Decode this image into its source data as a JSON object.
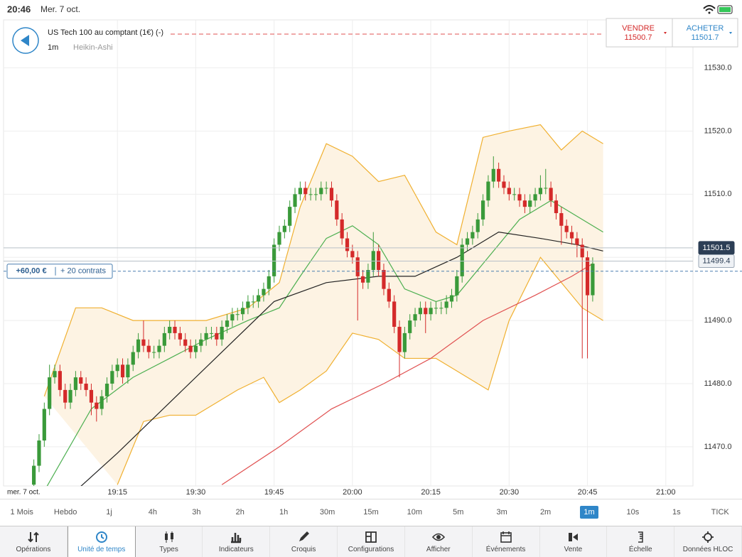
{
  "status_bar": {
    "time": "20:46",
    "date": "Mer. 7 oct."
  },
  "header": {
    "title": "US Tech 100 au comptant (1€) (-)",
    "interval": "1m",
    "chart_style": "Heikin-Ashi",
    "sell_label": "VENDRE",
    "sell_price": "11500.7",
    "buy_label": "ACHETER",
    "buy_price": "11501.7"
  },
  "chart_data": {
    "type": "candlestick",
    "x_date_label": "mer. 7 oct.",
    "up_color": "#3a9a3a",
    "down_color": "#d42a2a",
    "grid": true,
    "xlim": [
      1133.2,
      1265.2
    ],
    "xticks": [
      {
        "value": 1155,
        "label": "19:15"
      },
      {
        "value": 1170,
        "label": "19:30"
      },
      {
        "value": 1185,
        "label": "19:45"
      },
      {
        "value": 1200,
        "label": "20:00"
      },
      {
        "value": 1215,
        "label": "20:15"
      },
      {
        "value": 1230,
        "label": "20:30"
      },
      {
        "value": 1245,
        "label": "20:45"
      },
      {
        "value": 1260,
        "label": "21:00"
      }
    ],
    "ylim": [
      11463.8,
      11537.6
    ],
    "yticks": [
      {
        "value": 11470,
        "label": "11470.0"
      },
      {
        "value": 11480,
        "label": "11480.0"
      },
      {
        "value": 11490,
        "label": "11490.0"
      },
      {
        "value": 11500,
        "label": "11500.0"
      },
      {
        "value": 11510,
        "label": "11510.0"
      },
      {
        "value": 11520,
        "label": "11520.0"
      },
      {
        "value": 11530,
        "label": "11530.0"
      }
    ],
    "hidden_ytick_labels": [
      3
    ],
    "x": [
      1139,
      1140,
      1141,
      1142,
      1143,
      1144,
      1145,
      1146,
      1147,
      1148,
      1149,
      1150,
      1151,
      1152,
      1153,
      1154,
      1155,
      1156,
      1157,
      1158,
      1159,
      1160,
      1161,
      1162,
      1163,
      1164,
      1165,
      1166,
      1167,
      1168,
      1169,
      1170,
      1171,
      1172,
      1173,
      1174,
      1175,
      1176,
      1177,
      1178,
      1179,
      1180,
      1181,
      1182,
      1183,
      1184,
      1185,
      1186,
      1187,
      1188,
      1189,
      1190,
      1191,
      1192,
      1193,
      1194,
      1195,
      1196,
      1197,
      1198,
      1199,
      1200,
      1201,
      1202,
      1203,
      1204,
      1205,
      1206,
      1207,
      1208,
      1209,
      1210,
      1211,
      1212,
      1213,
      1214,
      1215,
      1216,
      1217,
      1218,
      1219,
      1220,
      1221,
      1222,
      1223,
      1224,
      1225,
      1226,
      1227,
      1228,
      1229,
      1230,
      1231,
      1232,
      1233,
      1234,
      1235,
      1236,
      1237,
      1238,
      1239,
      1240,
      1241,
      1242,
      1243,
      1244,
      1245,
      1246
    ],
    "candles": [
      [
        11464,
        11468,
        11463,
        11467
      ],
      [
        11467,
        11472,
        11466,
        11471
      ],
      [
        11471,
        11477,
        11470,
        11476
      ],
      [
        11476,
        11483,
        11475,
        11481
      ],
      [
        11481,
        11483,
        11480,
        11482
      ],
      [
        11482,
        11483,
        11478,
        11479
      ],
      [
        11479,
        11480,
        11476,
        11477
      ],
      [
        11477,
        11480,
        11476,
        11479
      ],
      [
        11479,
        11482,
        11478,
        11481
      ],
      [
        11481,
        11482,
        11479,
        11480
      ],
      [
        11480,
        11481,
        11478,
        11479
      ],
      [
        11479,
        11480,
        11475,
        11477
      ],
      [
        11477,
        11478,
        11474,
        11476
      ],
      [
        11476,
        11479,
        11475,
        11478
      ],
      [
        11478,
        11481,
        11477,
        11480
      ],
      [
        11480,
        11483,
        11479,
        11482
      ],
      [
        11482,
        11484,
        11481,
        11483
      ],
      [
        11483,
        11484,
        11480,
        11481
      ],
      [
        11481,
        11484,
        11480,
        11483
      ],
      [
        11483,
        11486,
        11482,
        11485
      ],
      [
        11485,
        11488,
        11484,
        11487
      ],
      [
        11487,
        11490,
        11485,
        11486
      ],
      [
        11486,
        11487,
        11484,
        11485
      ],
      [
        11485,
        11486,
        11484,
        11485
      ],
      [
        11485,
        11487,
        11484,
        11486
      ],
      [
        11486,
        11489,
        11485,
        11488
      ],
      [
        11488,
        11490,
        11487,
        11489
      ],
      [
        11489,
        11490,
        11487,
        11488
      ],
      [
        11488,
        11489,
        11486,
        11487
      ],
      [
        11487,
        11488,
        11485,
        11486
      ],
      [
        11486,
        11487,
        11484,
        11485
      ],
      [
        11485,
        11487,
        11484,
        11486
      ],
      [
        11486,
        11488,
        11485,
        11487
      ],
      [
        11487,
        11489,
        11486,
        11488
      ],
      [
        11488,
        11489,
        11487,
        11488
      ],
      [
        11488,
        11489,
        11486,
        11487
      ],
      [
        11487,
        11490,
        11486,
        11489
      ],
      [
        11489,
        11491,
        11488,
        11490
      ],
      [
        11490,
        11492,
        11489,
        11491
      ],
      [
        11491,
        11492,
        11490,
        11491
      ],
      [
        11491,
        11493,
        11490,
        11492
      ],
      [
        11492,
        11494,
        11491,
        11493
      ],
      [
        11493,
        11494,
        11492,
        11493
      ],
      [
        11493,
        11495,
        11492,
        11494
      ],
      [
        11494,
        11496,
        11493,
        11495
      ],
      [
        11495,
        11498,
        11494,
        11497
      ],
      [
        11497,
        11503,
        11496,
        11502
      ],
      [
        11502,
        11505,
        11501,
        11504
      ],
      [
        11504,
        11506,
        11503,
        11505
      ],
      [
        11505,
        11509,
        11504,
        11508
      ],
      [
        11508,
        11511,
        11507,
        11510
      ],
      [
        11510,
        11512,
        11509,
        11511
      ],
      [
        11511,
        11512,
        11509,
        11510
      ],
      [
        11510,
        11511,
        11509,
        11510
      ],
      [
        11510,
        11511,
        11509,
        11510
      ],
      [
        11510,
        11512,
        11509,
        11511
      ],
      [
        11511,
        11512,
        11510,
        11511
      ],
      [
        11511,
        11512,
        11508,
        11509
      ],
      [
        11509,
        11510,
        11505,
        11506
      ],
      [
        11506,
        11507,
        11502,
        11503
      ],
      [
        11503,
        11504,
        11500,
        11501
      ],
      [
        11501,
        11502,
        11499,
        11500
      ],
      [
        11500,
        11501,
        11490,
        11497
      ],
      [
        11497,
        11498,
        11495,
        11496
      ],
      [
        11496,
        11499,
        11495,
        11498
      ],
      [
        11498,
        11504,
        11497,
        11501
      ],
      [
        11501,
        11502,
        11497,
        11498
      ],
      [
        11498,
        11499,
        11494,
        11495
      ],
      [
        11495,
        11496,
        11492,
        11493
      ],
      [
        11493,
        11494,
        11488,
        11489
      ],
      [
        11489,
        11490,
        11481,
        11485
      ],
      [
        11485,
        11489,
        11484,
        11488
      ],
      [
        11488,
        11491,
        11487,
        11490
      ],
      [
        11490,
        11492,
        11489,
        11491
      ],
      [
        11491,
        11493,
        11490,
        11492
      ],
      [
        11492,
        11493,
        11488,
        11491
      ],
      [
        11491,
        11493,
        11490,
        11492
      ],
      [
        11492,
        11493,
        11491,
        11492
      ],
      [
        11492,
        11493,
        11491,
        11492
      ],
      [
        11492,
        11494,
        11491,
        11493
      ],
      [
        11493,
        11495,
        11492,
        11494
      ],
      [
        11494,
        11498,
        11493,
        11497
      ],
      [
        11497,
        11503,
        11496,
        11502
      ],
      [
        11502,
        11504,
        11501,
        11503
      ],
      [
        11503,
        11505,
        11502,
        11504
      ],
      [
        11504,
        11507,
        11503,
        11506
      ],
      [
        11506,
        11510,
        11505,
        11509
      ],
      [
        11509,
        11513,
        11508,
        11512
      ],
      [
        11512,
        11516,
        11511,
        11514
      ],
      [
        11514,
        11515,
        11511,
        11512
      ],
      [
        11512,
        11513,
        11510,
        11511
      ],
      [
        11511,
        11512,
        11509,
        11510
      ],
      [
        11510,
        11511,
        11509,
        11510
      ],
      [
        11510,
        11511,
        11508,
        11509
      ],
      [
        11509,
        11510,
        11507,
        11508
      ],
      [
        11508,
        11510,
        11507,
        11509
      ],
      [
        11509,
        11511,
        11508,
        11510
      ],
      [
        11510,
        11513,
        11509,
        11511
      ],
      [
        11511,
        11514,
        11510,
        11511
      ],
      [
        11511,
        11512,
        11508,
        11509
      ],
      [
        11509,
        11510,
        11506,
        11507
      ],
      [
        11507,
        11508,
        11502,
        11505
      ],
      [
        11505,
        11506,
        11503,
        11504
      ],
      [
        11504,
        11505,
        11502,
        11503
      ],
      [
        11503,
        11504,
        11500,
        11502
      ],
      [
        11502,
        11503,
        11484,
        11500
      ],
      [
        11500,
        11501,
        11484,
        11494
      ],
      [
        11494,
        11500,
        11493,
        11499
      ]
    ],
    "band_color": "#fdf3e3",
    "lines": [
      {
        "role": "upper",
        "color": "#f0b030",
        "x": [
          1141,
          1147,
          1152,
          1158,
          1165,
          1172,
          1180,
          1186,
          1190,
          1195,
          1200,
          1205,
          1210,
          1216,
          1220,
          1225,
          1230,
          1236,
          1240,
          1244,
          1248
        ],
        "values": [
          11478,
          11492,
          11492,
          11490,
          11490,
          11490,
          11492,
          11496,
          11508,
          11518,
          11516,
          11512,
          11513,
          11504,
          11502,
          11519,
          11520,
          11521,
          11517,
          11520,
          11518
        ]
      },
      {
        "role": "lower",
        "color": "#f0b030",
        "x": [
          1155,
          1160,
          1165,
          1170,
          1178,
          1183,
          1186,
          1190,
          1195,
          1200,
          1205,
          1210,
          1216,
          1222,
          1226,
          1230,
          1236,
          1240,
          1244,
          1248
        ],
        "values": [
          11464,
          11474,
          11475,
          11475,
          11479,
          11481,
          11477,
          11479,
          11482,
          11488,
          11487,
          11484,
          11484,
          11481,
          11479,
          11490,
          11500,
          11496,
          11492,
          11490
        ]
      },
      {
        "role": "middle",
        "color": "#4caf50",
        "x": [
          1141,
          1150,
          1158,
          1165,
          1172,
          1180,
          1186,
          1190,
          1195,
          1200,
          1205,
          1210,
          1216,
          1220,
          1226,
          1232,
          1238,
          1244,
          1248
        ],
        "values": [
          11463,
          11476,
          11481,
          11484,
          11487,
          11490,
          11492,
          11497,
          11503,
          11505,
          11502,
          11495,
          11493,
          11494,
          11500,
          11506,
          11509,
          11506,
          11504
        ]
      },
      {
        "role": "ma",
        "color": "#222222",
        "x": [
          1147,
          1155,
          1165,
          1175,
          1185,
          1195,
          1205,
          1212,
          1220,
          1228,
          1236,
          1243,
          1248
        ],
        "values": [
          11463,
          11469,
          11477,
          11485,
          11493,
          11496,
          11497,
          11497,
          11500,
          11504,
          11503,
          11502,
          11501
        ]
      },
      {
        "role": "ma",
        "color": "#e05050",
        "x": [
          1175,
          1186,
          1196,
          1206,
          1215,
          1225,
          1235,
          1242,
          1246
        ],
        "values": [
          11464,
          11470,
          11476,
          11480,
          11484,
          11490,
          11494,
          11497,
          11499
        ]
      }
    ],
    "price_tags": [
      {
        "value": 11501.5,
        "style": "dark"
      },
      {
        "value": 11499.4,
        "style": "light"
      }
    ],
    "position": {
      "pnl": "+60,00 €",
      "contracts": "+ 20 contrats",
      "level": 11497.8
    }
  },
  "timeframes": [
    "1 Mois",
    "Hebdo",
    "1j",
    "4h",
    "3h",
    "2h",
    "1h",
    "30m",
    "15m",
    "10m",
    "5m",
    "3m",
    "2m",
    "1m",
    "10s",
    "1s",
    "TICK"
  ],
  "timeframe_selected": 13,
  "toolbar": [
    "Opérations",
    "Unité de temps",
    "Types",
    "Indicateurs",
    "Croquis",
    "Configurations",
    "Afficher",
    "Événements",
    "Vente",
    "Échelle",
    "Données HLOC"
  ],
  "toolbar_selected": 1
}
